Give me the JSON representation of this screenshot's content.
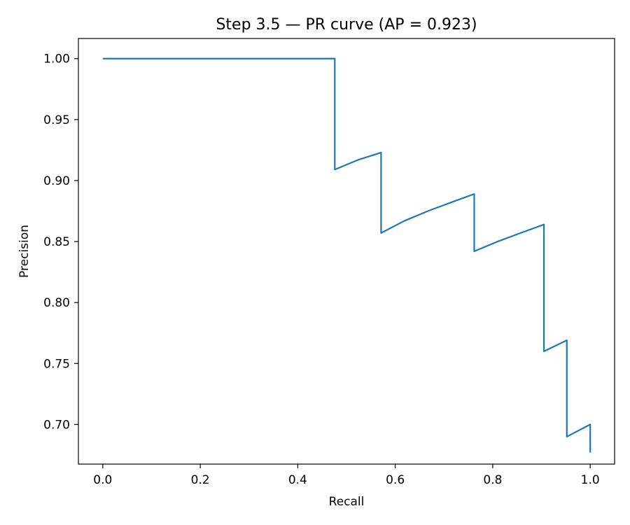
{
  "chart_data": {
    "type": "line",
    "title": "Step 3.5 — PR curve (AP = 0.923)",
    "xlabel": "Recall",
    "ylabel": "Precision",
    "xlim": [
      -0.05,
      1.05
    ],
    "ylim": [
      0.6675,
      1.0165
    ],
    "xticks": [
      0.0,
      0.2,
      0.4,
      0.6,
      0.8,
      1.0
    ],
    "xtick_labels": [
      "0.0",
      "0.2",
      "0.4",
      "0.6",
      "0.8",
      "1.0"
    ],
    "yticks": [
      0.7,
      0.75,
      0.8,
      0.85,
      0.9,
      0.95,
      1.0
    ],
    "ytick_labels": [
      "0.70",
      "0.75",
      "0.80",
      "0.85",
      "0.90",
      "0.95",
      "1.00"
    ],
    "grid": false,
    "legend": "none",
    "series": [
      {
        "color": "#1f77b4",
        "x": [
          0.0,
          0.476,
          0.476,
          0.524,
          0.571,
          0.571,
          0.619,
          0.667,
          0.714,
          0.762,
          0.762,
          0.81,
          0.857,
          0.905,
          0.905,
          0.952,
          0.952,
          1.0,
          1.0
        ],
        "y": [
          1.0,
          1.0,
          0.909,
          0.917,
          0.923,
          0.857,
          0.867,
          0.875,
          0.882,
          0.889,
          0.842,
          0.85,
          0.857,
          0.864,
          0.76,
          0.769,
          0.69,
          0.7,
          0.677
        ]
      }
    ]
  }
}
